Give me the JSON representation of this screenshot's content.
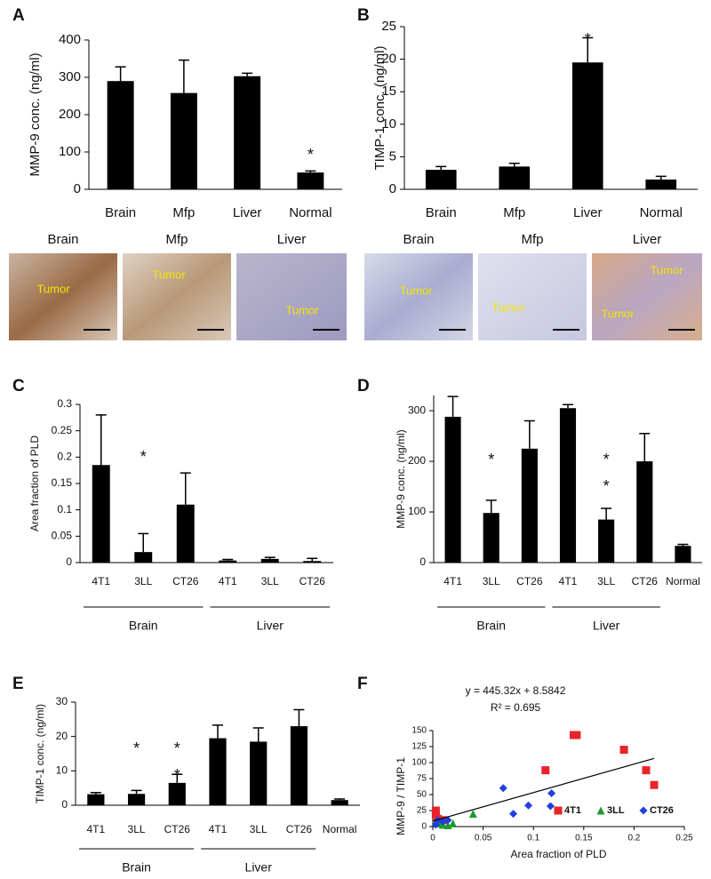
{
  "chart_data": [
    {
      "type": "bar",
      "panel_label": "A",
      "ylabel": "MMP-9 conc. (ng/ml)",
      "categories": [
        "Brain",
        "Mfp",
        "Liver",
        "Normal"
      ],
      "values": [
        290,
        258,
        303,
        45
      ],
      "errors": [
        38,
        88,
        8,
        4
      ],
      "color": "#000000",
      "ylim": [
        0,
        400
      ],
      "yticks": [
        0,
        100,
        200,
        300,
        400
      ],
      "annotations": [
        "*"
      ],
      "image_titles": [
        "Brain",
        "Mfp",
        "Liver"
      ],
      "image_annotations": [
        [
          "Tumor"
        ],
        [
          "Tumor"
        ],
        [
          "Tumor"
        ]
      ]
    },
    {
      "type": "bar",
      "panel_label": "B",
      "ylabel": "TIMP-1 conc. (ng/ml)",
      "categories": [
        "Brain",
        "Mfp",
        "Liver",
        "Normal"
      ],
      "values": [
        3.0,
        3.5,
        19.5,
        1.5
      ],
      "errors": [
        0.5,
        0.5,
        3.8,
        0.5
      ],
      "color": "#000000",
      "ylim": [
        0,
        25
      ],
      "yticks": [
        0,
        5,
        10,
        15,
        20,
        25
      ],
      "annotations": [
        "*"
      ],
      "image_titles": [
        "Brain",
        "Mfp",
        "Liver"
      ],
      "image_annotations": [
        [
          "Tumor"
        ],
        [
          "Tumor"
        ],
        [
          "Tumor",
          "Tumor"
        ]
      ]
    },
    {
      "type": "bar",
      "panel_label": "C",
      "ylabel": "Area fraction of PLD",
      "categories": [
        "4T1",
        "3LL",
        "CT26",
        "4T1",
        "3LL",
        "CT26"
      ],
      "values": [
        0.185,
        0.02,
        0.11,
        0.004,
        0.007,
        0.003
      ],
      "errors": [
        0.095,
        0.035,
        0.06,
        0.002,
        0.003,
        0.005
      ],
      "color": "#000000",
      "ylim": [
        0,
        0.3
      ],
      "yticks": [
        0,
        0.05,
        0.1,
        0.15,
        0.2,
        0.25,
        0.3
      ],
      "annotations": [
        "*"
      ],
      "groups": [
        "Brain",
        "Liver"
      ]
    },
    {
      "type": "bar",
      "panel_label": "D",
      "ylabel": "MMP-9 conc. (ng/ml)",
      "categories": [
        "4T1",
        "3LL",
        "CT26",
        "4T1",
        "3LL",
        "CT26",
        "Normal"
      ],
      "values": [
        288,
        98,
        225,
        305,
        85,
        200,
        33
      ],
      "errors": [
        40,
        25,
        55,
        7,
        22,
        55,
        3
      ],
      "color": "#000000",
      "ylim": [
        0,
        330
      ],
      "yticks": [
        0,
        100,
        200,
        300
      ],
      "annotations": [
        "*",
        "*",
        "*"
      ],
      "groups": [
        "Brain",
        "Liver"
      ]
    },
    {
      "type": "bar",
      "panel_label": "E",
      "ylabel": "TIMP-1 conc. (ng/ml)",
      "categories": [
        "4T1",
        "3LL",
        "CT26",
        "4T1",
        "3LL",
        "CT26",
        "Normal"
      ],
      "values": [
        3.2,
        3.3,
        6.5,
        19.5,
        18.5,
        23,
        1.5
      ],
      "errors": [
        0.5,
        1,
        2.5,
        3.8,
        4,
        4.8,
        0.3
      ],
      "color": "#000000",
      "ylim": [
        0,
        30
      ],
      "yticks": [
        0,
        10,
        20,
        30
      ],
      "annotations": [
        "*",
        "*",
        "*"
      ],
      "groups": [
        "Brain",
        "Liver"
      ]
    },
    {
      "type": "scatter",
      "panel_label": "F",
      "xlabel": "Area fraction of PLD",
      "ylabel": "MMP-9 / TIMP-1",
      "xlim": [
        0,
        0.25
      ],
      "xticks": [
        0,
        0.05,
        0.1,
        0.15,
        0.2,
        0.25
      ],
      "ylim": [
        0,
        150
      ],
      "yticks": [
        0,
        25,
        50,
        75,
        100,
        125,
        150
      ],
      "trendline": {
        "slope": 445.32,
        "intercept": 8.5842,
        "equation": "y = 445.32x + 8.5842",
        "r_squared": "R² = 0.695"
      },
      "series": [
        {
          "name": "4T1",
          "color": "#e8242a",
          "marker": "square",
          "x": [
            0.14,
            0.143,
            0.19,
            0.112,
            0.212,
            0.22,
            0.003,
            0.003,
            0.005,
            0.01
          ],
          "y": [
            143,
            143,
            120,
            88,
            88,
            65,
            25,
            18,
            12,
            10
          ]
        },
        {
          "name": "3LL",
          "color": "#1c9a2e",
          "marker": "triangle",
          "x": [
            0.04,
            0.005,
            0.01,
            0.015,
            0.008,
            0.02
          ],
          "y": [
            20,
            5,
            3,
            2,
            8,
            5
          ]
        },
        {
          "name": "CT26",
          "color": "#1f3fe0",
          "marker": "diamond",
          "x": [
            0.07,
            0.118,
            0.095,
            0.117,
            0.08,
            0.005,
            0.01,
            0.015,
            0.003
          ],
          "y": [
            60,
            52,
            33,
            32,
            20,
            10,
            8,
            10,
            3
          ]
        }
      ]
    }
  ]
}
